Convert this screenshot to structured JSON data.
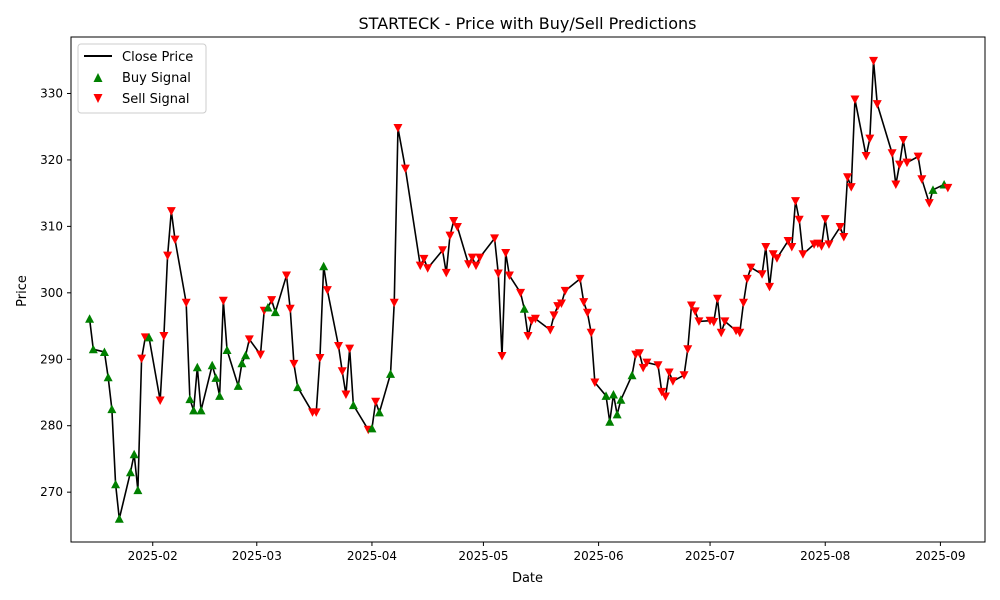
{
  "chart_data": {
    "type": "line",
    "title": "STARTECK - Price with Buy/Sell Predictions",
    "xlabel": "Date",
    "ylabel": "Price",
    "xlim": [
      "2025-01-10",
      "2025-09-13"
    ],
    "ylim": [
      262.5,
      338.5
    ],
    "x_ticks": [
      "2025-02-01",
      "2025-03-01",
      "2025-04-01",
      "2025-05-01",
      "2025-06-01",
      "2025-07-01",
      "2025-08-01",
      "2025-09-01"
    ],
    "x_tick_labels": [
      "2025-02",
      "2025-03",
      "2025-04",
      "2025-05",
      "2025-06",
      "2025-07",
      "2025-08",
      "2025-09"
    ],
    "y_ticks": [
      270,
      280,
      290,
      300,
      310,
      320,
      330
    ],
    "grid": false,
    "legend_position": "top-left",
    "legend": [
      "Close Price",
      "Buy Signal",
      "Sell Signal"
    ],
    "colors": {
      "close": "#000000",
      "buy": "#008000",
      "sell": "#ff0000"
    },
    "series": [
      {
        "name": "Close Price",
        "points": [
          [
            "2025-01-15",
            296.1,
            "buy"
          ],
          [
            "2025-01-16",
            291.5,
            "buy"
          ],
          [
            "2025-01-19",
            291.1,
            "buy"
          ],
          [
            "2025-01-20",
            287.3,
            "buy"
          ],
          [
            "2025-01-21",
            282.5,
            "buy"
          ],
          [
            "2025-01-22",
            271.2,
            "buy"
          ],
          [
            "2025-01-23",
            266.0,
            "buy"
          ],
          [
            "2025-01-26",
            273.0,
            "buy"
          ],
          [
            "2025-01-27",
            275.7,
            "buy"
          ],
          [
            "2025-01-28",
            270.3,
            "buy"
          ],
          [
            "2025-01-29",
            290.1,
            "sell"
          ],
          [
            "2025-01-30",
            293.3,
            "sell"
          ],
          [
            "2025-01-31",
            293.3,
            "buy"
          ],
          [
            "2025-02-03",
            283.8,
            "sell"
          ],
          [
            "2025-02-04",
            293.5,
            "sell"
          ],
          [
            "2025-02-05",
            305.6,
            "sell"
          ],
          [
            "2025-02-06",
            312.3,
            "sell"
          ],
          [
            "2025-02-07",
            308.0,
            "sell"
          ],
          [
            "2025-02-10",
            298.5,
            "sell"
          ],
          [
            "2025-02-11",
            284.0,
            "buy"
          ],
          [
            "2025-02-12",
            282.3,
            "buy"
          ],
          [
            "2025-02-13",
            288.8,
            "buy"
          ],
          [
            "2025-02-14",
            282.3,
            "buy"
          ],
          [
            "2025-02-17",
            289.1,
            "buy"
          ],
          [
            "2025-02-18",
            287.2,
            "buy"
          ],
          [
            "2025-02-19",
            284.5,
            "buy"
          ],
          [
            "2025-02-20",
            298.8,
            "sell"
          ],
          [
            "2025-02-21",
            291.4,
            "buy"
          ],
          [
            "2025-02-24",
            286.0,
            "buy"
          ],
          [
            "2025-02-25",
            289.4,
            "buy"
          ],
          [
            "2025-02-26",
            290.6,
            "buy"
          ],
          [
            "2025-02-27",
            293.0,
            "sell"
          ],
          [
            "2025-03-02",
            290.7,
            "sell"
          ],
          [
            "2025-03-03",
            297.3,
            "sell"
          ],
          [
            "2025-03-04",
            297.8,
            "buy"
          ],
          [
            "2025-03-05",
            298.9,
            "sell"
          ],
          [
            "2025-03-06",
            297.1,
            "buy"
          ],
          [
            "2025-03-09",
            302.6,
            "sell"
          ],
          [
            "2025-03-10",
            297.6,
            "sell"
          ],
          [
            "2025-03-11",
            289.3,
            "sell"
          ],
          [
            "2025-03-12",
            285.8,
            "buy"
          ],
          [
            "2025-03-16",
            282.0,
            "sell"
          ],
          [
            "2025-03-17",
            282.0,
            "sell"
          ],
          [
            "2025-03-18",
            290.2,
            "sell"
          ],
          [
            "2025-03-19",
            304.0,
            "buy"
          ],
          [
            "2025-03-20",
            300.4,
            "sell"
          ],
          [
            "2025-03-23",
            292.0,
            "sell"
          ],
          [
            "2025-03-24",
            288.2,
            "sell"
          ],
          [
            "2025-03-25",
            284.7,
            "sell"
          ],
          [
            "2025-03-26",
            291.6,
            "sell"
          ],
          [
            "2025-03-27",
            283.1,
            "buy"
          ],
          [
            "2025-03-31",
            279.4,
            "sell"
          ],
          [
            "2025-04-01",
            279.6,
            "buy"
          ],
          [
            "2025-04-02",
            283.6,
            "sell"
          ],
          [
            "2025-04-03",
            282.0,
            "buy"
          ],
          [
            "2025-04-06",
            287.8,
            "buy"
          ],
          [
            "2025-04-07",
            298.5,
            "sell"
          ],
          [
            "2025-04-08",
            324.8,
            "sell"
          ],
          [
            "2025-04-10",
            318.7,
            "sell"
          ],
          [
            "2025-04-14",
            304.1,
            "sell"
          ],
          [
            "2025-04-15",
            305.1,
            "sell"
          ],
          [
            "2025-04-16",
            303.7,
            "sell"
          ],
          [
            "2025-04-20",
            306.4,
            "sell"
          ],
          [
            "2025-04-21",
            303.0,
            "sell"
          ],
          [
            "2025-04-22",
            308.6,
            "sell"
          ],
          [
            "2025-04-23",
            310.8,
            "sell"
          ],
          [
            "2025-04-24",
            309.9,
            "sell"
          ],
          [
            "2025-04-27",
            304.3,
            "sell"
          ],
          [
            "2025-04-28",
            305.3,
            "sell"
          ],
          [
            "2025-04-29",
            304.1,
            "sell"
          ],
          [
            "2025-04-30",
            305.3,
            "sell"
          ],
          [
            "2025-05-04",
            308.2,
            "sell"
          ],
          [
            "2025-05-05",
            302.9,
            "sell"
          ],
          [
            "2025-05-06",
            290.5,
            "sell"
          ],
          [
            "2025-05-07",
            306.0,
            "sell"
          ],
          [
            "2025-05-08",
            302.6,
            "sell"
          ],
          [
            "2025-05-11",
            300.0,
            "sell"
          ],
          [
            "2025-05-12",
            297.6,
            "buy"
          ],
          [
            "2025-05-13",
            293.5,
            "sell"
          ],
          [
            "2025-05-14",
            295.8,
            "sell"
          ],
          [
            "2025-05-15",
            296.1,
            "sell"
          ],
          [
            "2025-05-19",
            294.4,
            "sell"
          ],
          [
            "2025-05-20",
            296.6,
            "sell"
          ],
          [
            "2025-05-21",
            298.0,
            "sell"
          ],
          [
            "2025-05-22",
            298.4,
            "sell"
          ],
          [
            "2025-05-23",
            300.3,
            "sell"
          ],
          [
            "2025-05-27",
            302.1,
            "sell"
          ],
          [
            "2025-05-28",
            298.6,
            "sell"
          ],
          [
            "2025-05-29",
            297.0,
            "sell"
          ],
          [
            "2025-05-30",
            294.0,
            "sell"
          ],
          [
            "2025-05-31",
            286.5,
            "sell"
          ],
          [
            "2025-06-03",
            284.5,
            "buy"
          ],
          [
            "2025-06-04",
            280.6,
            "buy"
          ],
          [
            "2025-06-05",
            284.7,
            "buy"
          ],
          [
            "2025-06-06",
            281.7,
            "buy"
          ],
          [
            "2025-06-07",
            283.9,
            "buy"
          ],
          [
            "2025-06-10",
            287.6,
            "buy"
          ],
          [
            "2025-06-11",
            290.7,
            "sell"
          ],
          [
            "2025-06-12",
            290.9,
            "sell"
          ],
          [
            "2025-06-13",
            288.7,
            "sell"
          ],
          [
            "2025-06-14",
            289.5,
            "sell"
          ],
          [
            "2025-06-17",
            289.1,
            "sell"
          ],
          [
            "2025-06-18",
            285.1,
            "sell"
          ],
          [
            "2025-06-19",
            284.4,
            "sell"
          ],
          [
            "2025-06-20",
            288.0,
            "sell"
          ],
          [
            "2025-06-21",
            286.7,
            "sell"
          ],
          [
            "2025-06-24",
            287.6,
            "sell"
          ],
          [
            "2025-06-25",
            291.5,
            "sell"
          ],
          [
            "2025-06-26",
            298.1,
            "sell"
          ],
          [
            "2025-06-27",
            297.2,
            "sell"
          ],
          [
            "2025-06-28",
            295.7,
            "sell"
          ],
          [
            "2025-07-01",
            295.8,
            "sell"
          ],
          [
            "2025-07-02",
            295.6,
            "sell"
          ],
          [
            "2025-07-03",
            299.1,
            "sell"
          ],
          [
            "2025-07-04",
            294.0,
            "sell"
          ],
          [
            "2025-07-05",
            295.7,
            "sell"
          ],
          [
            "2025-07-08",
            294.3,
            "sell"
          ],
          [
            "2025-07-09",
            294.0,
            "sell"
          ],
          [
            "2025-07-10",
            298.5,
            "sell"
          ],
          [
            "2025-07-11",
            302.1,
            "sell"
          ],
          [
            "2025-07-12",
            303.8,
            "sell"
          ],
          [
            "2025-07-15",
            302.8,
            "sell"
          ],
          [
            "2025-07-16",
            306.9,
            "sell"
          ],
          [
            "2025-07-17",
            300.9,
            "sell"
          ],
          [
            "2025-07-18",
            305.8,
            "sell"
          ],
          [
            "2025-07-19",
            305.2,
            "sell"
          ],
          [
            "2025-07-22",
            307.8,
            "sell"
          ],
          [
            "2025-07-23",
            306.9,
            "sell"
          ],
          [
            "2025-07-24",
            313.8,
            "sell"
          ],
          [
            "2025-07-25",
            311.0,
            "sell"
          ],
          [
            "2025-07-26",
            305.8,
            "sell"
          ],
          [
            "2025-07-29",
            307.3,
            "sell"
          ],
          [
            "2025-07-30",
            307.4,
            "sell"
          ],
          [
            "2025-07-31",
            307.0,
            "sell"
          ],
          [
            "2025-08-01",
            311.1,
            "sell"
          ],
          [
            "2025-08-02",
            307.3,
            "sell"
          ],
          [
            "2025-08-05",
            309.9,
            "sell"
          ],
          [
            "2025-08-06",
            308.4,
            "sell"
          ],
          [
            "2025-08-07",
            317.4,
            "sell"
          ],
          [
            "2025-08-08",
            315.9,
            "sell"
          ],
          [
            "2025-08-09",
            329.1,
            "sell"
          ],
          [
            "2025-08-12",
            320.6,
            "sell"
          ],
          [
            "2025-08-13",
            323.2,
            "sell"
          ],
          [
            "2025-08-14",
            334.9,
            "sell"
          ],
          [
            "2025-08-15",
            328.4,
            "sell"
          ],
          [
            "2025-08-19",
            321.0,
            "sell"
          ],
          [
            "2025-08-20",
            316.3,
            "sell"
          ],
          [
            "2025-08-21",
            319.3,
            "sell"
          ],
          [
            "2025-08-22",
            323.0,
            "sell"
          ],
          [
            "2025-08-23",
            319.6,
            "sell"
          ],
          [
            "2025-08-26",
            320.5,
            "sell"
          ],
          [
            "2025-08-27",
            317.1,
            "sell"
          ],
          [
            "2025-08-29",
            313.5,
            "sell"
          ],
          [
            "2025-08-30",
            315.5,
            "buy"
          ],
          [
            "2025-09-02",
            316.3,
            "buy"
          ],
          [
            "2025-09-03",
            315.8,
            "sell"
          ]
        ]
      }
    ]
  }
}
